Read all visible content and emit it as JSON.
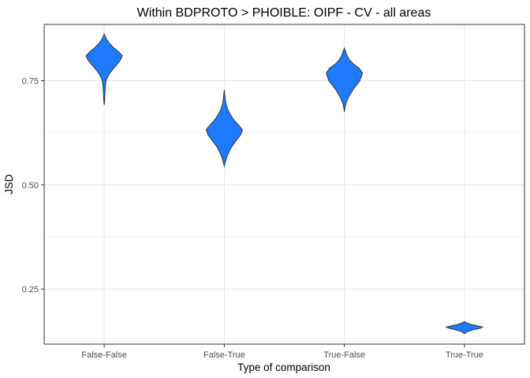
{
  "chart_data": {
    "type": "violin",
    "title": "Within BDPROTO > PHOIBLE: OIPF - CV - all areas",
    "xlabel": "Type of comparison",
    "ylabel": "JSD",
    "categories": [
      "False-False",
      "False-True",
      "True-False",
      "True-True"
    ],
    "ylim": [
      0.118,
      0.885
    ],
    "yticks": [
      0.25,
      0.5,
      0.75
    ],
    "ytick_labels": [
      "0.25",
      "0.50",
      "0.75"
    ],
    "fill_color": "#1E7BFF",
    "grid": true,
    "legend": "none",
    "series": [
      {
        "category": "False-False",
        "min": 0.692,
        "max": 0.862,
        "mode": 0.812,
        "density": [
          [
            0.692,
            0.0
          ],
          [
            0.7,
            0.02
          ],
          [
            0.72,
            0.04
          ],
          [
            0.74,
            0.07
          ],
          [
            0.75,
            0.1
          ],
          [
            0.76,
            0.2
          ],
          [
            0.77,
            0.34
          ],
          [
            0.78,
            0.52
          ],
          [
            0.79,
            0.72
          ],
          [
            0.8,
            0.9
          ],
          [
            0.81,
            1.0
          ],
          [
            0.82,
            0.78
          ],
          [
            0.83,
            0.5
          ],
          [
            0.84,
            0.28
          ],
          [
            0.85,
            0.12
          ],
          [
            0.862,
            0.0
          ]
        ]
      },
      {
        "category": "False-True",
        "min": 0.545,
        "max": 0.728,
        "mode": 0.632,
        "density": [
          [
            0.545,
            0.0
          ],
          [
            0.555,
            0.06
          ],
          [
            0.57,
            0.16
          ],
          [
            0.59,
            0.38
          ],
          [
            0.61,
            0.72
          ],
          [
            0.62,
            0.9
          ],
          [
            0.632,
            1.0
          ],
          [
            0.64,
            0.86
          ],
          [
            0.65,
            0.65
          ],
          [
            0.66,
            0.46
          ],
          [
            0.67,
            0.32
          ],
          [
            0.68,
            0.2
          ],
          [
            0.69,
            0.12
          ],
          [
            0.7,
            0.07
          ],
          [
            0.715,
            0.03
          ],
          [
            0.728,
            0.0
          ]
        ]
      },
      {
        "category": "True-False",
        "min": 0.675,
        "max": 0.828,
        "mode": 0.768,
        "density": [
          [
            0.675,
            0.0
          ],
          [
            0.685,
            0.03
          ],
          [
            0.695,
            0.08
          ],
          [
            0.71,
            0.22
          ],
          [
            0.73,
            0.5
          ],
          [
            0.75,
            0.85
          ],
          [
            0.768,
            1.0
          ],
          [
            0.78,
            0.82
          ],
          [
            0.79,
            0.5
          ],
          [
            0.8,
            0.28
          ],
          [
            0.81,
            0.15
          ],
          [
            0.82,
            0.07
          ],
          [
            0.828,
            0.0
          ]
        ]
      },
      {
        "category": "True-True",
        "min": 0.143,
        "max": 0.172,
        "mode": 0.159,
        "density": [
          [
            0.143,
            0.0
          ],
          [
            0.148,
            0.15
          ],
          [
            0.152,
            0.45
          ],
          [
            0.156,
            0.85
          ],
          [
            0.159,
            1.0
          ],
          [
            0.162,
            0.72
          ],
          [
            0.165,
            0.38
          ],
          [
            0.168,
            0.18
          ],
          [
            0.172,
            0.0
          ]
        ]
      }
    ]
  }
}
